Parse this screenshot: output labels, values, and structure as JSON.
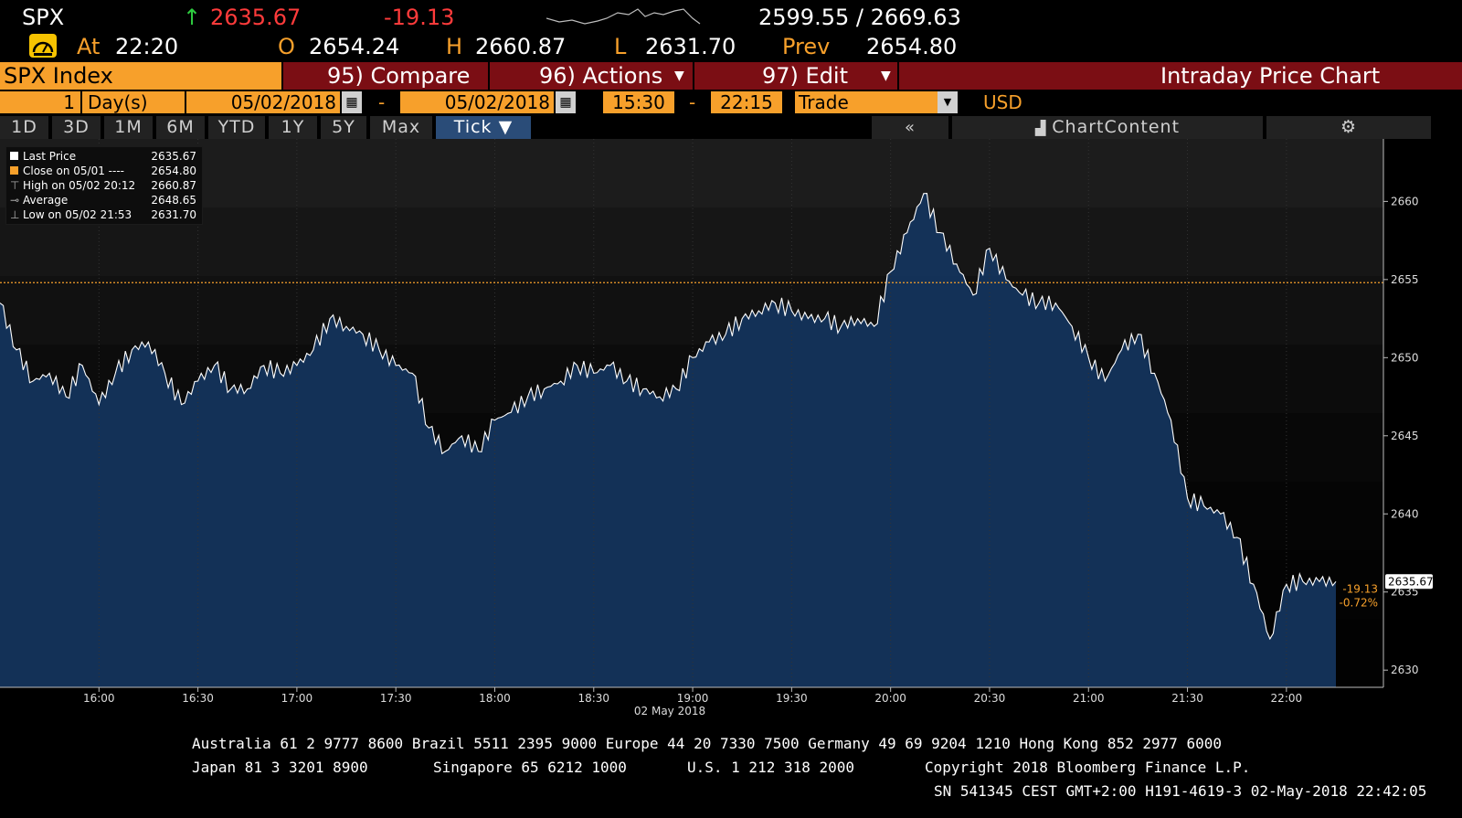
{
  "quote": {
    "ticker": "SPX",
    "last_price": "2635.67",
    "change": "-19.13",
    "range": "2599.55 / 2669.63",
    "at_label": "At",
    "time": "22:20",
    "open_label": "O",
    "open": "2654.24",
    "high_label": "H",
    "high": "2660.87",
    "low_label": "L",
    "low": "2631.70",
    "prev_label": "Prev",
    "prev": "2654.80",
    "up_arrow": "↑"
  },
  "menu": {
    "security": "SPX Index",
    "compare": "95) Compare",
    "actions": "96) Actions",
    "edit": "97) Edit",
    "title": "Intraday Price Chart"
  },
  "controls": {
    "period_count": "1",
    "period_unit": "Day(s)",
    "start_date": "05/02/2018",
    "end_date": "05/02/2018",
    "start_time": "15:30",
    "end_time": "22:15",
    "dash": "-",
    "field": "Trade",
    "currency": "USD"
  },
  "tabs": [
    "1D",
    "3D",
    "1M",
    "6M",
    "YTD",
    "1Y",
    "5Y",
    "Max",
    "Tick ▼"
  ],
  "toolbar": {
    "collapse": "«",
    "chart_content": "ChartContent",
    "settings_icon": "⚙"
  },
  "legend": {
    "last_price_label": "Last Price",
    "last_price_value": "2635.67",
    "close_label": "Close on 05/01 ----",
    "close_value": "2654.80",
    "high_label": "High on 05/02 20:12",
    "high_value": "2660.87",
    "average_label": "Average",
    "average_value": "2648.65",
    "low_label": "Low on 05/02 21:53",
    "low_value": "2631.70"
  },
  "chart_data": {
    "type": "area",
    "x_date_label": "02 May 2018",
    "x_ticks": [
      "16:00",
      "16:30",
      "17:00",
      "17:30",
      "18:00",
      "18:30",
      "19:00",
      "19:30",
      "20:00",
      "20:30",
      "21:00",
      "21:30",
      "22:00"
    ],
    "y_ticks": [
      2630,
      2635,
      2640,
      2645,
      2650,
      2655,
      2660
    ],
    "ylim": [
      2628.9,
      2664
    ],
    "x_range": [
      "15:30",
      "22:15"
    ],
    "prev_close": 2654.8,
    "last_value_label": "2635.67",
    "change_label": "-19.13",
    "change_pct_label": "-0.72%",
    "series": [
      {
        "x": [
          "15:30",
          "15:35",
          "15:40",
          "15:45",
          "15:50",
          "15:55",
          "16:00",
          "16:05",
          "16:10",
          "16:15",
          "16:20",
          "16:25",
          "16:30",
          "16:35",
          "16:40",
          "16:45",
          "16:50",
          "16:55",
          "17:00",
          "17:05",
          "17:10",
          "17:15",
          "17:20",
          "17:25",
          "17:30",
          "17:35",
          "17:40",
          "17:45",
          "17:50",
          "17:55",
          "18:00",
          "18:05",
          "18:10",
          "18:15",
          "18:20",
          "18:25",
          "18:30",
          "18:35",
          "18:40",
          "18:45",
          "18:50",
          "18:55",
          "19:00",
          "19:05",
          "19:10",
          "19:15",
          "19:20",
          "19:25",
          "19:30",
          "19:35",
          "19:40",
          "19:45",
          "19:50",
          "19:55",
          "20:00",
          "20:05",
          "20:10",
          "20:15",
          "20:20",
          "20:25",
          "20:30",
          "20:35",
          "20:40",
          "20:45",
          "20:50",
          "20:55",
          "21:00",
          "21:05",
          "21:10",
          "21:15",
          "21:20",
          "21:25",
          "21:30",
          "21:35",
          "21:40",
          "21:45",
          "21:50",
          "21:55",
          "22:00",
          "22:05",
          "22:10",
          "22:15"
        ],
        "values": [
          2653.5,
          2650.5,
          2648.5,
          2649.0,
          2647.5,
          2649.5,
          2647.0,
          2649.0,
          2650.5,
          2651.0,
          2649.0,
          2647.0,
          2648.5,
          2649.5,
          2648.0,
          2648.0,
          2649.5,
          2649.0,
          2649.5,
          2650.5,
          2652.5,
          2652.0,
          2651.5,
          2650.5,
          2649.5,
          2649.0,
          2645.5,
          2644.0,
          2645.0,
          2644.0,
          2646.0,
          2646.5,
          2647.5,
          2648.0,
          2648.5,
          2649.5,
          2649.0,
          2649.5,
          2648.5,
          2648.0,
          2647.5,
          2648.0,
          2650.0,
          2651.0,
          2651.5,
          2652.5,
          2653.0,
          2653.5,
          2653.0,
          2652.5,
          2652.5,
          2652.0,
          2652.5,
          2652.0,
          2655.5,
          2658.0,
          2660.5,
          2658.0,
          2656.0,
          2654.0,
          2657.0,
          2655.0,
          2654.0,
          2653.5,
          2653.5,
          2652.0,
          2650.0,
          2648.5,
          2650.5,
          2651.5,
          2649.0,
          2646.0,
          2641.0,
          2640.5,
          2640.0,
          2638.5,
          2635.5,
          2632.0,
          2635.5,
          2635.67,
          2635.67,
          2635.67
        ]
      }
    ],
    "grid": true,
    "legend_placement": "top-left"
  },
  "footer": {
    "line1": "Australia 61 2 9777 8600 Brazil 5511 2395 9000 Europe 44 20 7330 7500 Germany 49 69 9204 1210 Hong Kong 852 2977 6000",
    "line2_japan": "Japan 81 3 3201 8900",
    "line2_singapore": "Singapore 65 6212 1000",
    "line2_us": "U.S. 1 212 318 2000",
    "line2_copyright": "Copyright 2018 Bloomberg Finance L.P.",
    "line3": "SN 541345 CEST GMT+2:00 H191-4619-3 02-May-2018 22:42:05"
  },
  "colors": {
    "amber": "#f7a02b",
    "red": "#ff3b3b",
    "menu_bg": "#7b0e14",
    "area_fill": "#14345c",
    "prev_close_line": "#f7a02b"
  }
}
